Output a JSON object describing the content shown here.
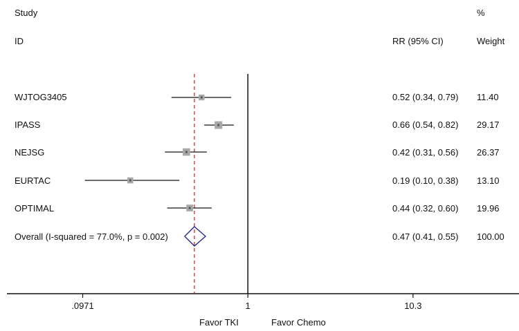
{
  "header": {
    "study_label": "Study",
    "id_label": "ID",
    "rr_label": "RR (95% CI)",
    "pct_label": "%",
    "weight_label": "Weight"
  },
  "chart_data": {
    "type": "forest",
    "x_scale": "log",
    "xlim": [
      0.0333,
      46
    ],
    "null_line": 1,
    "pooled_line": 0.47,
    "xticks": [
      0.0971,
      1,
      10.3
    ],
    "xtick_labels": [
      ".0971",
      "1",
      "10.3"
    ],
    "xlabel_left": "Favor TKI",
    "xlabel_right": "Favor Chemo",
    "studies": [
      {
        "id": "WJTOG3405",
        "rr": 0.52,
        "lo": 0.34,
        "hi": 0.79,
        "weight": 11.4,
        "ci_text": "0.52 (0.34, 0.79)",
        "weight_text": "11.40"
      },
      {
        "id": "IPASS",
        "rr": 0.66,
        "lo": 0.54,
        "hi": 0.82,
        "weight": 29.17,
        "ci_text": "0.66 (0.54, 0.82)",
        "weight_text": "29.17"
      },
      {
        "id": "NEJSG",
        "rr": 0.42,
        "lo": 0.31,
        "hi": 0.56,
        "weight": 26.37,
        "ci_text": "0.42 (0.31, 0.56)",
        "weight_text": "26.37"
      },
      {
        "id": "EURTAC",
        "rr": 0.19,
        "lo": 0.1,
        "hi": 0.38,
        "weight": 13.1,
        "ci_text": "0.19 (0.10, 0.38)",
        "weight_text": "13.10"
      },
      {
        "id": "OPTIMAL",
        "rr": 0.44,
        "lo": 0.32,
        "hi": 0.6,
        "weight": 19.96,
        "ci_text": "0.44 (0.32, 0.60)",
        "weight_text": "19.96"
      }
    ],
    "overall": {
      "label": "Overall  (I-squared = 77.0%, p = 0.002)",
      "rr": 0.47,
      "lo": 0.41,
      "hi": 0.55,
      "ci_text": "0.47 (0.41, 0.55)",
      "weight_text": "100.00"
    },
    "colors": {
      "line": "#111111",
      "box": "#a8a8a8",
      "diamond": "#2a2a8a",
      "pooled": "#b22222"
    }
  }
}
